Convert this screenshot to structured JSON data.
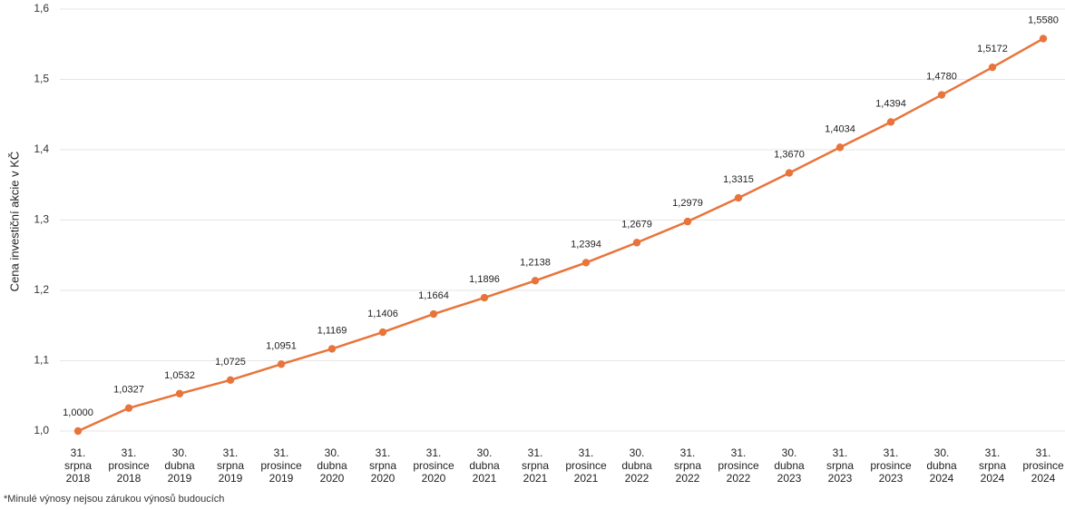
{
  "chart_data": {
    "type": "line",
    "ylabel": "Cena investiční akcie v KČ",
    "ylim": [
      1.0,
      1.6
    ],
    "yticks": [
      "1,0",
      "1,1",
      "1,2",
      "1,3",
      "1,4",
      "1,5",
      "1,6"
    ],
    "grid": true,
    "categories": [
      [
        "31.",
        "srpna",
        "2018"
      ],
      [
        "31.",
        "prosince",
        "2018"
      ],
      [
        "30.",
        "dubna",
        "2019"
      ],
      [
        "31.",
        "srpna",
        "2019"
      ],
      [
        "31.",
        "prosince",
        "2019"
      ],
      [
        "30.",
        "dubna",
        "2020"
      ],
      [
        "31.",
        "srpna",
        "2020"
      ],
      [
        "31.",
        "prosince",
        "2020"
      ],
      [
        "30.",
        "dubna",
        "2021"
      ],
      [
        "31.",
        "srpna",
        "2021"
      ],
      [
        "31.",
        "prosince",
        "2021"
      ],
      [
        "30.",
        "dubna",
        "2022"
      ],
      [
        "31.",
        "srpna",
        "2022"
      ],
      [
        "31.",
        "prosince",
        "2022"
      ],
      [
        "30.",
        "dubna",
        "2023"
      ],
      [
        "31.",
        "srpna",
        "2023"
      ],
      [
        "31.",
        "prosince",
        "2023"
      ],
      [
        "30.",
        "dubna",
        "2024"
      ],
      [
        "31.",
        "srpna",
        "2024"
      ],
      [
        "31.",
        "prosince",
        "2024"
      ]
    ],
    "values": [
      1.0,
      1.0327,
      1.0532,
      1.0725,
      1.0951,
      1.1169,
      1.1406,
      1.1664,
      1.1896,
      1.2138,
      1.2394,
      1.2679,
      1.2979,
      1.3315,
      1.367,
      1.4034,
      1.4394,
      1.478,
      1.5172,
      1.558
    ],
    "labels": [
      "1,0000",
      "1,0327",
      "1,0532",
      "1,0725",
      "1,0951",
      "1,1169",
      "1,1406",
      "1,1664",
      "1,1896",
      "1,2138",
      "1,2394",
      "1,2679",
      "1,2979",
      "1,3315",
      "1,3670",
      "1,4034",
      "1,4394",
      "1,4780",
      "1,5172",
      "1,5580"
    ],
    "series_color": "#E8743B",
    "grid_color": "#E6E6E6"
  },
  "footnote": "*Minulé výnosy nejsou zárukou výnosů budoucích"
}
